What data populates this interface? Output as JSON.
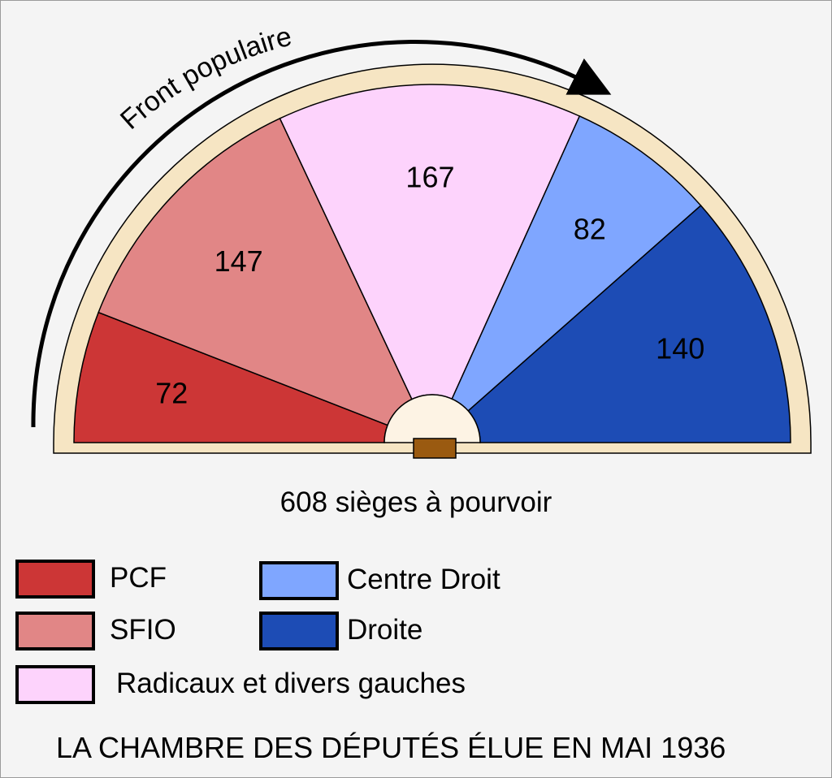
{
  "chart_data": {
    "type": "pie",
    "subtype": "parliament-hemicycle",
    "title": "LA CHAMBRE DES DÉPUTÉS ÉLUE EN MAI 1936",
    "subtitle": "608 sièges à pourvoir",
    "total_seats": 608,
    "series": [
      {
        "name": "PCF",
        "value": 72,
        "color": "#cc3636"
      },
      {
        "name": "SFIO",
        "value": 147,
        "color": "#e18686"
      },
      {
        "name": "Radicaux et divers gauches",
        "value": 167,
        "color": "#fdd3fc"
      },
      {
        "name": "Centre Droit",
        "value": 82,
        "color": "#7fa6ff"
      },
      {
        "name": "Droite",
        "value": 140,
        "color": "#1d4cb5"
      }
    ],
    "annotations": [
      {
        "text": "Front populaire",
        "spans": [
          "PCF",
          "SFIO",
          "Radicaux et divers gauches"
        ]
      }
    ],
    "legend_position": "bottom"
  },
  "colors": {
    "background": "#f4f4f4",
    "rim": "#f6e5c3",
    "tribune": "#fdf3e4",
    "desk": "#9a5a10"
  }
}
